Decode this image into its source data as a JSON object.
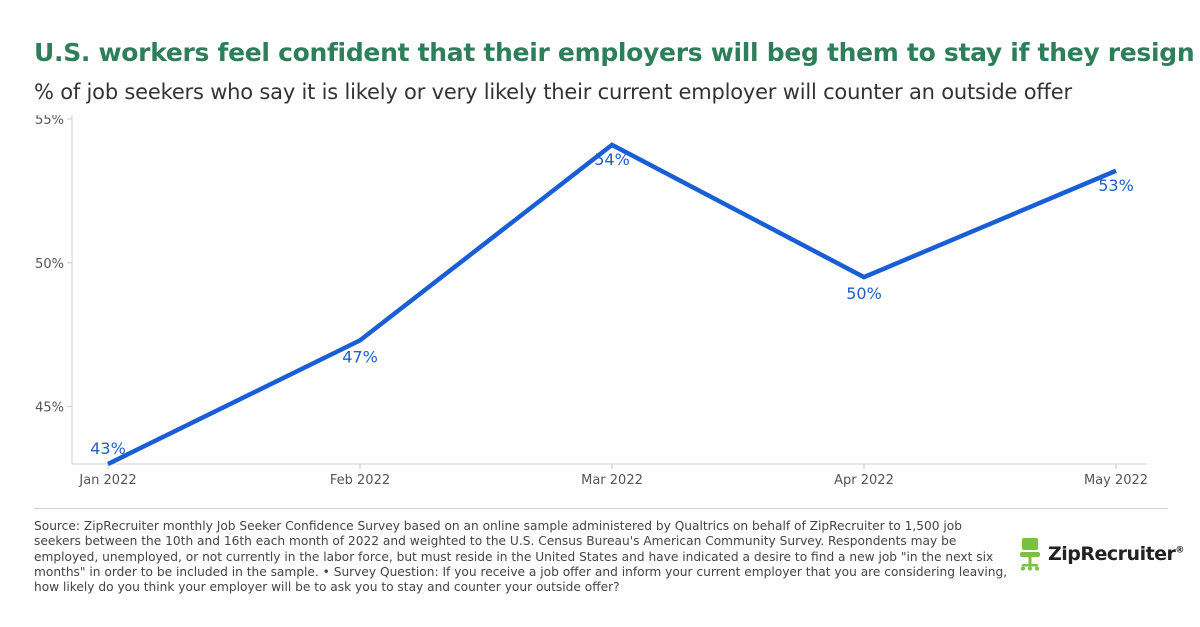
{
  "header": {
    "title": "U.S. workers feel confident that their employers will beg them to stay if they resign",
    "subtitle": "% of job seekers who say it is likely or very likely their current employer will counter an outside offer"
  },
  "chart_data": {
    "type": "line",
    "title": "U.S. workers feel confident that their employers will beg them to stay if they resign",
    "subtitle": "% of job seekers who say it is likely or very likely their current employer will counter an outside offer",
    "categories": [
      "Jan 2022",
      "Feb 2022",
      "Mar 2022",
      "Apr 2022",
      "May 2022"
    ],
    "values": [
      43,
      47.3,
      54.1,
      49.5,
      53.2
    ],
    "data_labels": [
      "43%",
      "47%",
      "54%",
      "50%",
      "53%"
    ],
    "xlabel": "",
    "ylabel": "",
    "ylim": [
      43,
      55
    ],
    "yticks": [
      45,
      50,
      55
    ],
    "ytick_labels": [
      "45%",
      "50%",
      "55%"
    ],
    "grid": false,
    "legend": "none",
    "line_color": "#1a5ed6",
    "label_color": "#1f5fc7"
  },
  "footer": {
    "source": "Source: ZipRecruiter monthly Job Seeker Confidence Survey based on an online sample administered by Qualtrics on behalf of ZipRecruiter to 1,500 job seekers between the 10th and 16th each month of 2022 and weighted to the U.S. Census Bureau's American Community Survey. Respondents may be employed, unemployed, or not currently in the labor force, but must reside in the United States and have indicated a desire to find a new job \"in the next six months\" in order to be included in the sample. • Survey Question: If you receive a job offer and inform your current employer that you are considering leaving, how likely do you think your employer will be to ask you to stay and counter your outside offer?",
    "logo_text": "ZipRecruiter",
    "logo_mark": "®",
    "logo_icon": "chair-icon",
    "brand_color": "#7ac143"
  }
}
